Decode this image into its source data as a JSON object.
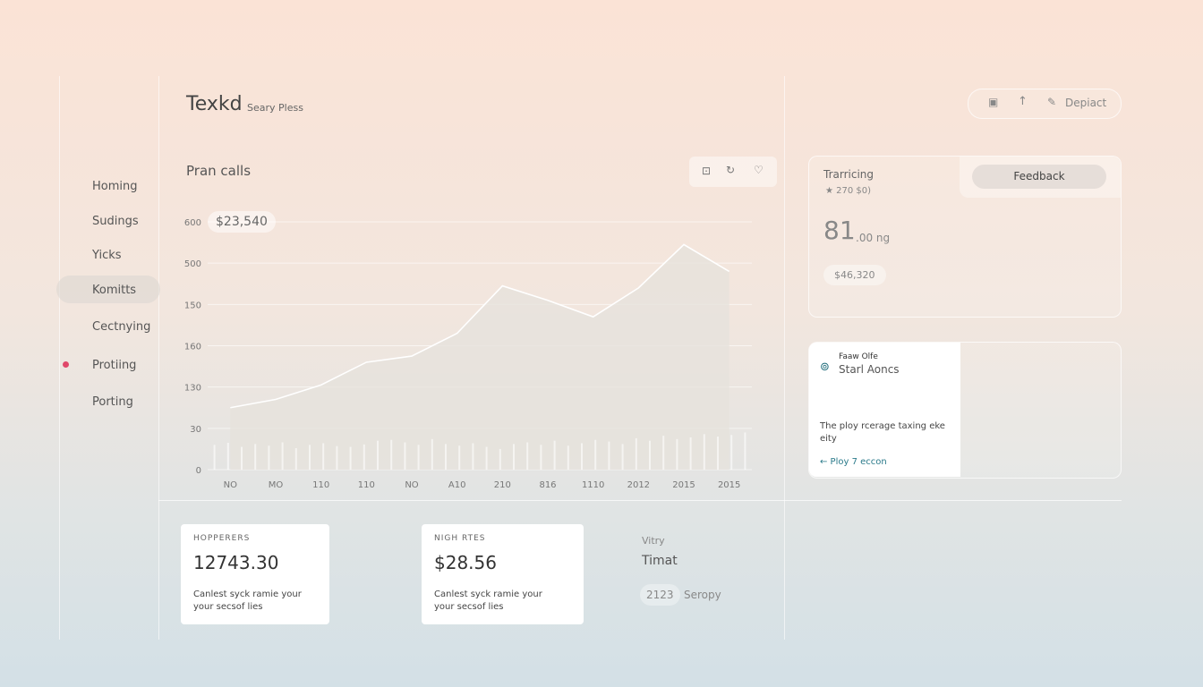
{
  "header": {
    "title": "Texkd",
    "subtitle": "Seary Pless"
  },
  "toolbar": {
    "action": "Depiact"
  },
  "nav": [
    "Homing",
    "Sudings",
    "Yicks",
    "Komitts",
    "Cectnying",
    "Protiing",
    "Porting"
  ],
  "chart_panel": {
    "title": "Pran calls",
    "badge": "$23,540",
    "axis_labels": [
      "600",
      "500",
      "150",
      "160",
      "130",
      "30",
      "0"
    ]
  },
  "chart_data": {
    "type": "area",
    "categories": [
      "NO",
      "MO",
      "110",
      "110",
      "NO",
      "A10",
      "210",
      "816",
      "1110",
      "2012",
      "2015",
      "2015"
    ],
    "values": [
      150,
      170,
      205,
      260,
      275,
      330,
      445,
      410,
      370,
      440,
      545,
      480
    ],
    "bar_values": [
      60,
      65,
      55,
      62,
      58,
      66,
      52,
      60,
      64,
      57,
      55,
      61,
      70,
      72,
      66,
      60,
      74,
      62,
      58,
      64,
      55,
      50,
      62,
      66,
      60,
      70,
      58,
      64,
      72,
      68,
      62,
      76,
      70,
      82,
      74,
      78,
      86,
      80,
      84,
      90
    ],
    "ylim": [
      0,
      600
    ],
    "line_color": "#ffffff",
    "area_color": "#e6e2dc",
    "bar_color": "#ffffff"
  },
  "pricing_card": {
    "title": "Trarricing",
    "meta": "★ 270 $0)",
    "value": "81",
    "unit": ".00 ng",
    "badge": "$46,320",
    "button": "Feedback"
  },
  "promo_card": {
    "label": "Faaw Olfe",
    "title": "Starl Aoncs",
    "text": "The ploy rcerage taxing eke eity",
    "link": "← Ploy 7 eccon"
  },
  "stat_cards": [
    {
      "label": "HOPPERERS",
      "value": "12743.30",
      "text": "Canlest syck ramie your your secsof lies"
    },
    {
      "label": "NIGH RTES",
      "value": "$28.56",
      "text": "Canlest syck ramie your your secsof lies"
    }
  ],
  "side_stat": {
    "label": "Vitry",
    "title": "Timat",
    "badge": "2123",
    "note": "Seropy"
  }
}
